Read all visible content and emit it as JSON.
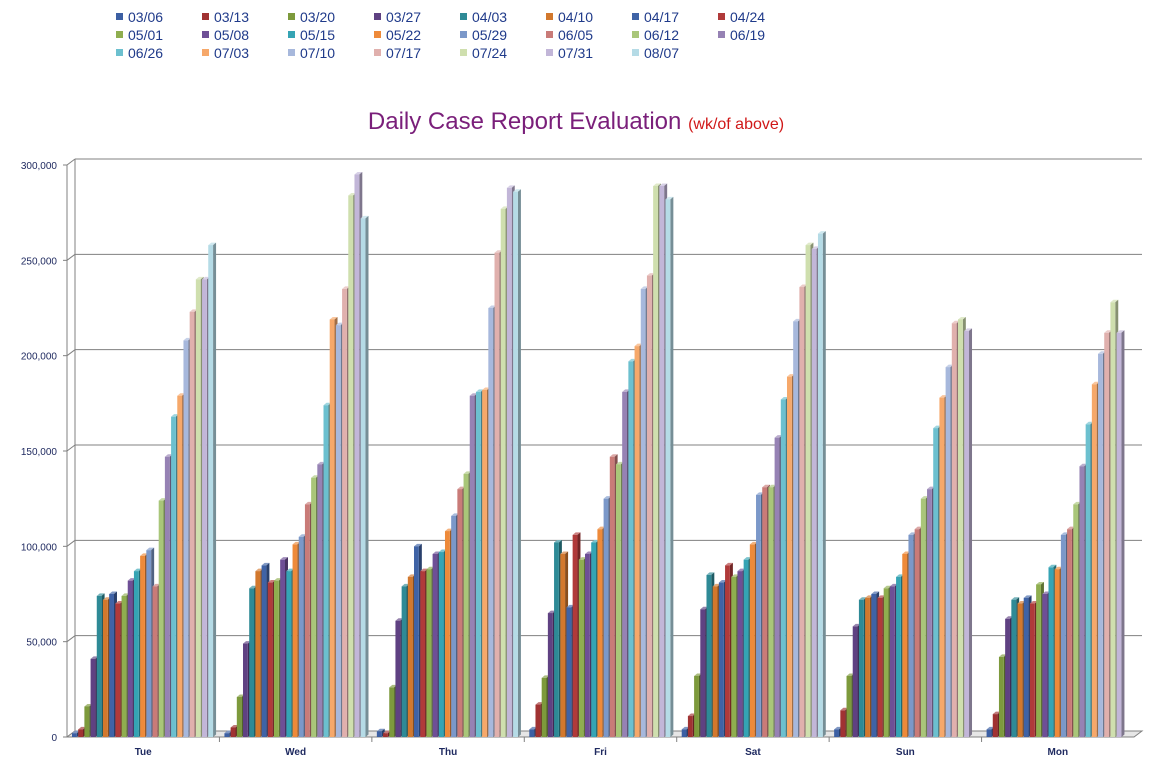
{
  "chart_data": {
    "type": "bar",
    "title": "Daily Case Report Evaluation",
    "subtitle": "(wk/of above)",
    "xlabel": "",
    "ylabel": "",
    "ylim": [
      0,
      300000
    ],
    "y_ticks": [
      "0",
      "50,000",
      "100,000",
      "150,000",
      "200,000",
      "250,000",
      "300,000"
    ],
    "grid": true,
    "legend_position": "top-left",
    "categories": [
      "Tue",
      "Wed",
      "Thu",
      "Fri",
      "Sat",
      "Sun",
      "Mon"
    ],
    "series": [
      {
        "name": "03/06",
        "color": "#3c5fa3",
        "values": [
          2000,
          2000,
          3000,
          4000,
          4000,
          4000,
          4000
        ]
      },
      {
        "name": "03/13",
        "color": "#a03232",
        "values": [
          4000,
          5000,
          2000,
          17000,
          11000,
          14000,
          12000
        ]
      },
      {
        "name": "03/20",
        "color": "#7d9a3c",
        "values": [
          16000,
          21000,
          26000,
          31000,
          32000,
          32000,
          42000
        ]
      },
      {
        "name": "03/27",
        "color": "#5f4182",
        "values": [
          41000,
          49000,
          61000,
          65000,
          67000,
          58000,
          62000
        ]
      },
      {
        "name": "04/03",
        "color": "#2e8a96",
        "values": [
          74000,
          78000,
          79000,
          102000,
          85000,
          72000,
          72000
        ]
      },
      {
        "name": "04/10",
        "color": "#d2782d",
        "values": [
          72000,
          87000,
          84000,
          96000,
          79000,
          73000,
          70000
        ]
      },
      {
        "name": "04/17",
        "color": "#3f63a6",
        "values": [
          75000,
          90000,
          100000,
          68000,
          81000,
          75000,
          73000
        ]
      },
      {
        "name": "04/24",
        "color": "#b03a3a",
        "values": [
          70000,
          81000,
          87000,
          106000,
          90000,
          73000,
          70000
        ]
      },
      {
        "name": "05/01",
        "color": "#8fae4f",
        "values": [
          74000,
          82000,
          88000,
          93000,
          84000,
          78000,
          80000
        ]
      },
      {
        "name": "05/08",
        "color": "#6e4f96",
        "values": [
          82000,
          93000,
          96000,
          96000,
          87000,
          79000,
          75000
        ]
      },
      {
        "name": "05/15",
        "color": "#35a4b4",
        "values": [
          87000,
          87000,
          97000,
          102000,
          93000,
          84000,
          89000
        ]
      },
      {
        "name": "05/22",
        "color": "#ee8a3a",
        "values": [
          95000,
          101000,
          108000,
          109000,
          101000,
          96000,
          88000
        ]
      },
      {
        "name": "05/29",
        "color": "#7b98c9",
        "values": [
          98000,
          105000,
          116000,
          125000,
          127000,
          106000,
          106000
        ]
      },
      {
        "name": "06/05",
        "color": "#c97b78",
        "values": [
          79000,
          122000,
          130000,
          147000,
          131000,
          109000,
          109000
        ]
      },
      {
        "name": "06/12",
        "color": "#a9c679",
        "values": [
          124000,
          136000,
          138000,
          143000,
          131000,
          125000,
          122000
        ]
      },
      {
        "name": "06/19",
        "color": "#9682b4",
        "values": [
          147000,
          143000,
          179000,
          181000,
          157000,
          130000,
          142000
        ]
      },
      {
        "name": "06/26",
        "color": "#6cc0cf",
        "values": [
          168000,
          174000,
          181000,
          197000,
          177000,
          162000,
          164000
        ]
      },
      {
        "name": "07/03",
        "color": "#f6a86a",
        "values": [
          179000,
          219000,
          182000,
          205000,
          189000,
          178000,
          185000
        ]
      },
      {
        "name": "07/10",
        "color": "#a7b8dc",
        "values": [
          208000,
          216000,
          225000,
          235000,
          218000,
          194000,
          201000
        ]
      },
      {
        "name": "07/17",
        "color": "#e0b0ad",
        "values": [
          223000,
          235000,
          254000,
          242000,
          236000,
          217000,
          212000
        ]
      },
      {
        "name": "07/24",
        "color": "#cfdfae",
        "values": [
          240000,
          284000,
          277000,
          289000,
          258000,
          219000,
          228000
        ]
      },
      {
        "name": "07/31",
        "color": "#c2b6d8",
        "values": [
          240000,
          295000,
          288000,
          289000,
          256000,
          213000,
          212000
        ]
      },
      {
        "name": "08/07",
        "color": "#b5dbe6",
        "values": [
          258000,
          272000,
          286000,
          282000,
          264000,
          null,
          null
        ]
      }
    ]
  }
}
